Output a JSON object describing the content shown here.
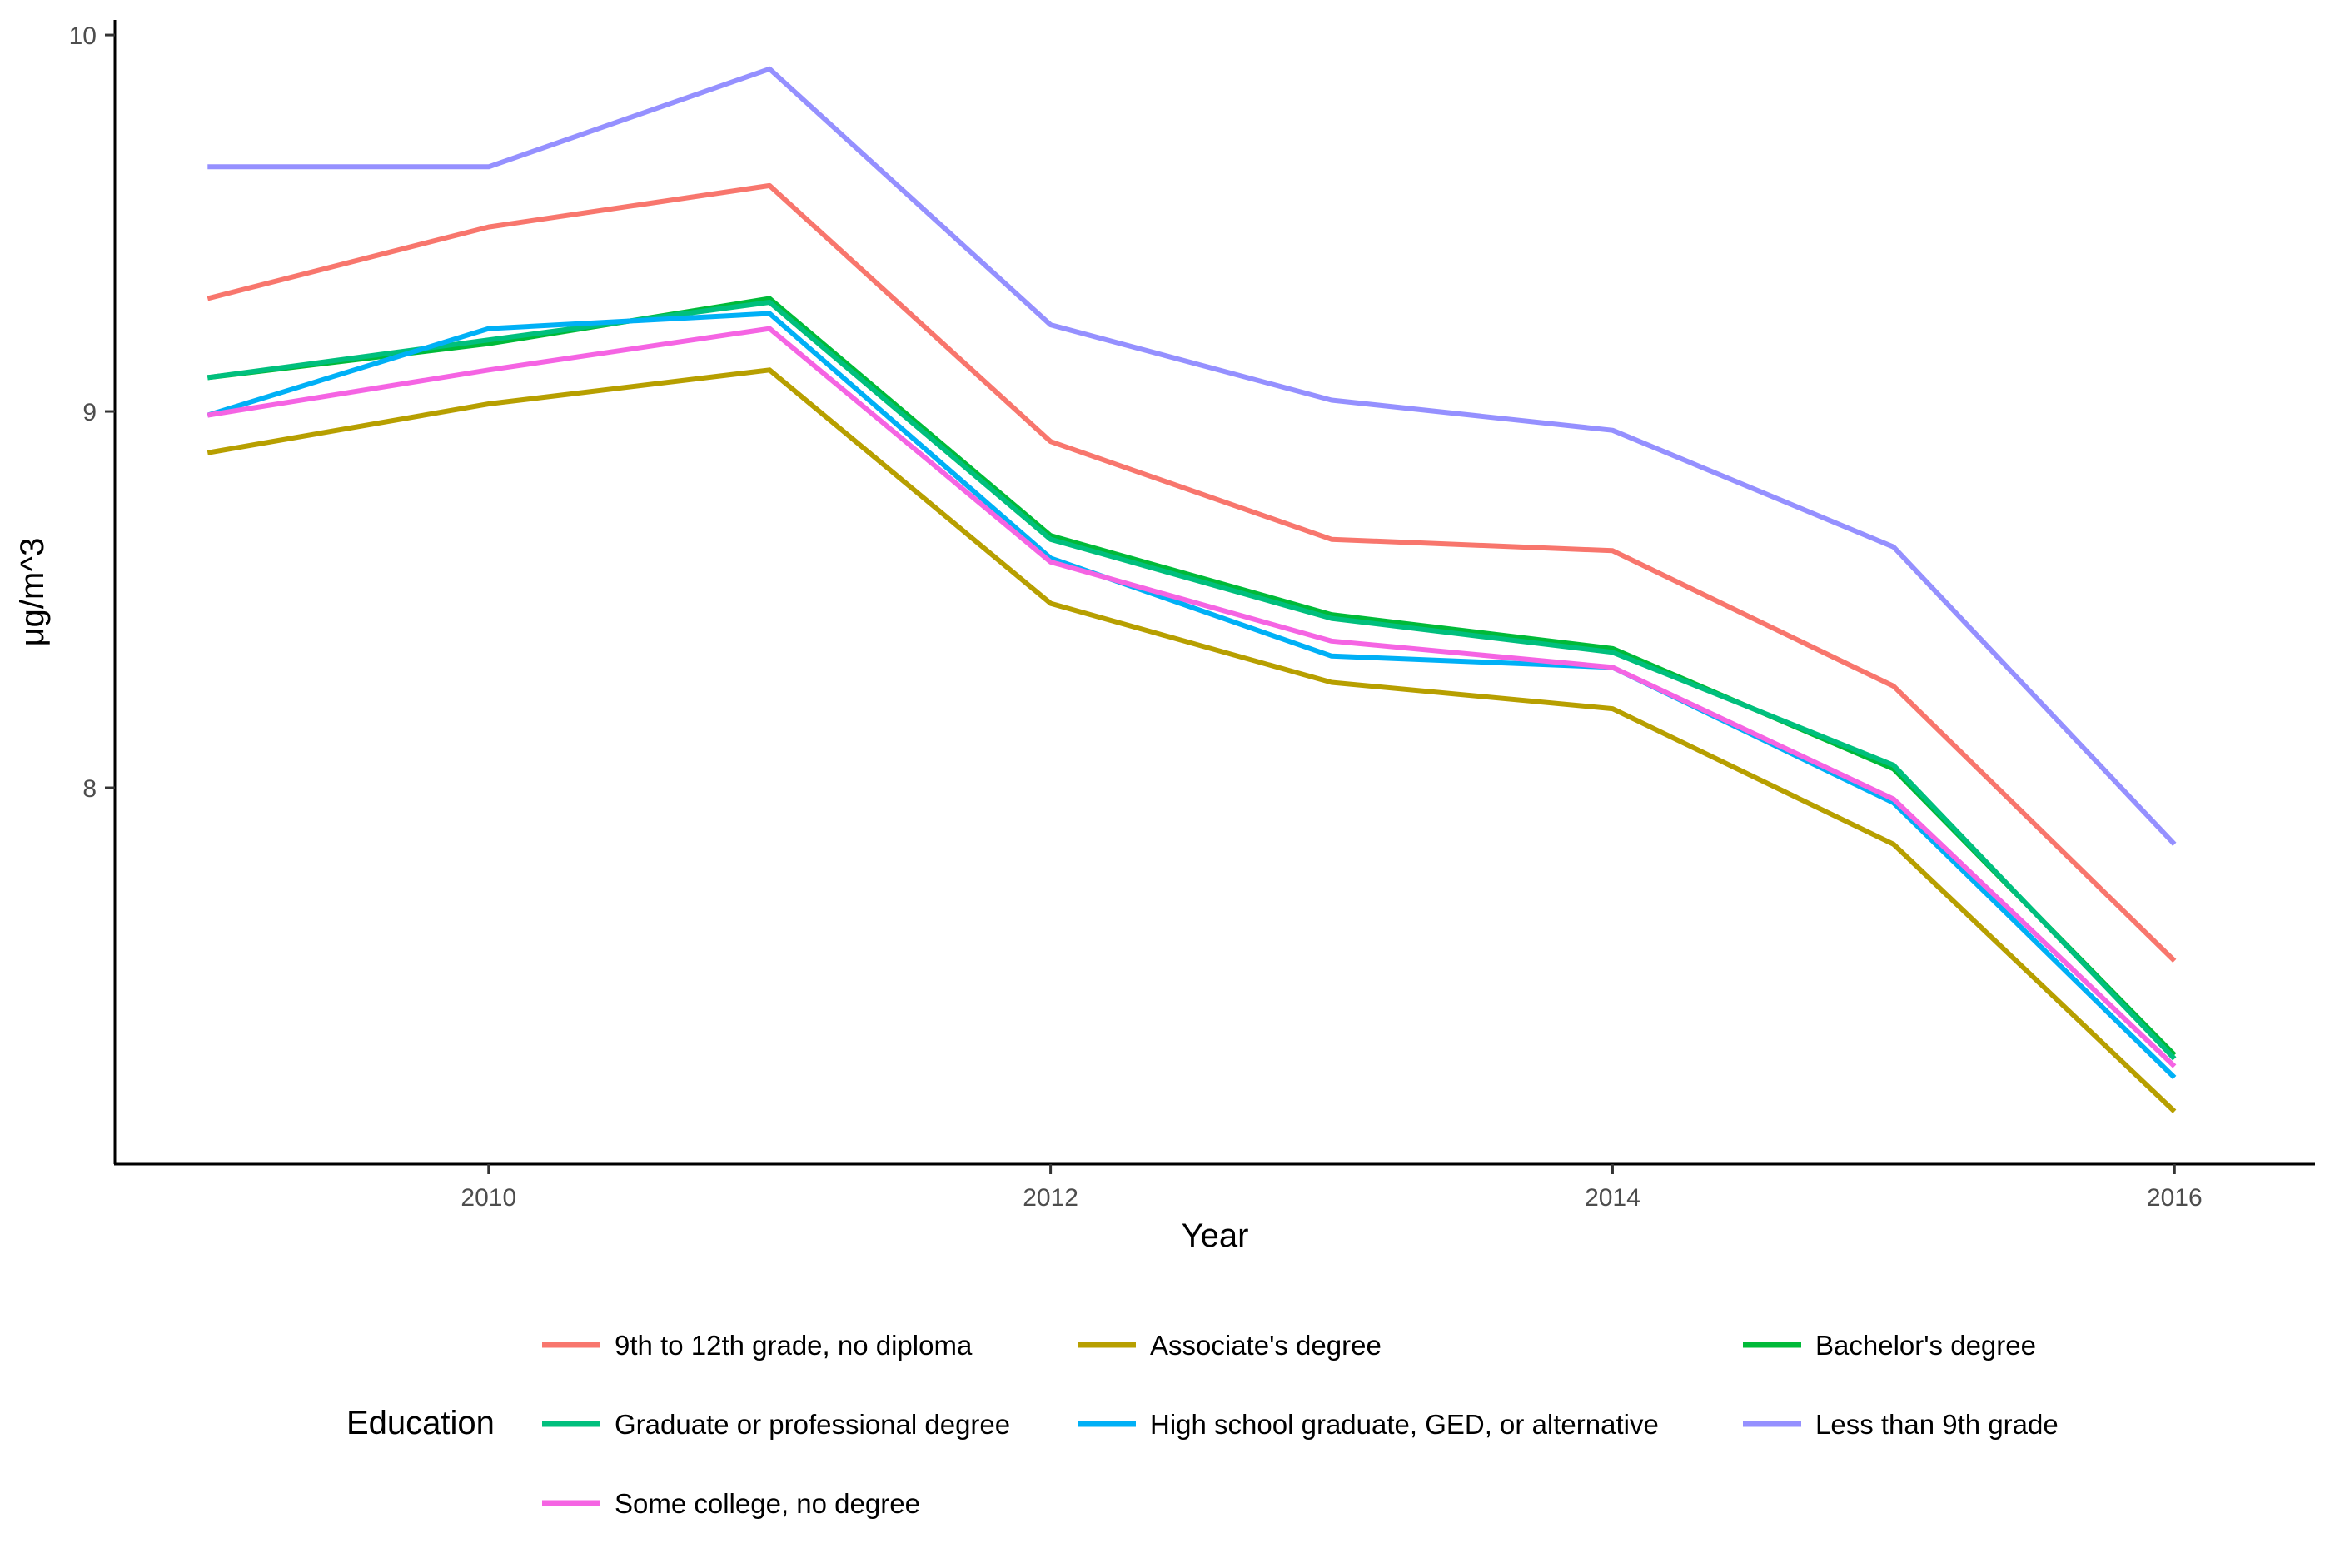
{
  "chart_data": {
    "type": "line",
    "title": "",
    "xlabel": "Year",
    "ylabel": "μg/m^3",
    "x": [
      2009,
      2010,
      2011,
      2012,
      2013,
      2014,
      2015,
      2016
    ],
    "xlim": [
      2008.67,
      2016.5
    ],
    "ylim": [
      7.0,
      10.04
    ],
    "x_ticks": [
      2010,
      2012,
      2014,
      2016
    ],
    "y_ticks": [
      8,
      9,
      10
    ],
    "grid": false,
    "legend_title": "Education",
    "legend_position": "bottom",
    "series": [
      {
        "name": "9th to 12th grade, no diploma",
        "color": "#F8766D",
        "values": [
          9.3,
          9.49,
          9.6,
          8.92,
          8.66,
          8.63,
          8.27,
          7.54
        ]
      },
      {
        "name": "Associate's degree",
        "color": "#B79F00",
        "values": [
          8.89,
          9.02,
          9.11,
          8.49,
          8.28,
          8.21,
          7.85,
          7.14
        ]
      },
      {
        "name": "Bachelor's degree",
        "color": "#00BA38",
        "values": [
          9.09,
          9.18,
          9.3,
          8.67,
          8.46,
          8.37,
          8.05,
          7.29
        ]
      },
      {
        "name": "Graduate or professional degree",
        "color": "#00BF7D",
        "values": [
          9.09,
          9.19,
          9.29,
          8.66,
          8.45,
          8.36,
          8.06,
          7.28
        ]
      },
      {
        "name": "High school graduate, GED, or alternative",
        "color": "#00B0F6",
        "values": [
          8.99,
          9.22,
          9.26,
          8.61,
          8.35,
          8.32,
          7.96,
          7.23
        ]
      },
      {
        "name": "Less than 9th grade",
        "color": "#9590FF",
        "values": [
          9.65,
          9.65,
          9.91,
          9.23,
          9.03,
          8.95,
          8.64,
          7.85
        ]
      },
      {
        "name": "Some college, no degree",
        "color": "#F564E3",
        "values": [
          8.99,
          9.11,
          9.22,
          8.6,
          8.39,
          8.32,
          7.97,
          7.26
        ]
      }
    ]
  }
}
